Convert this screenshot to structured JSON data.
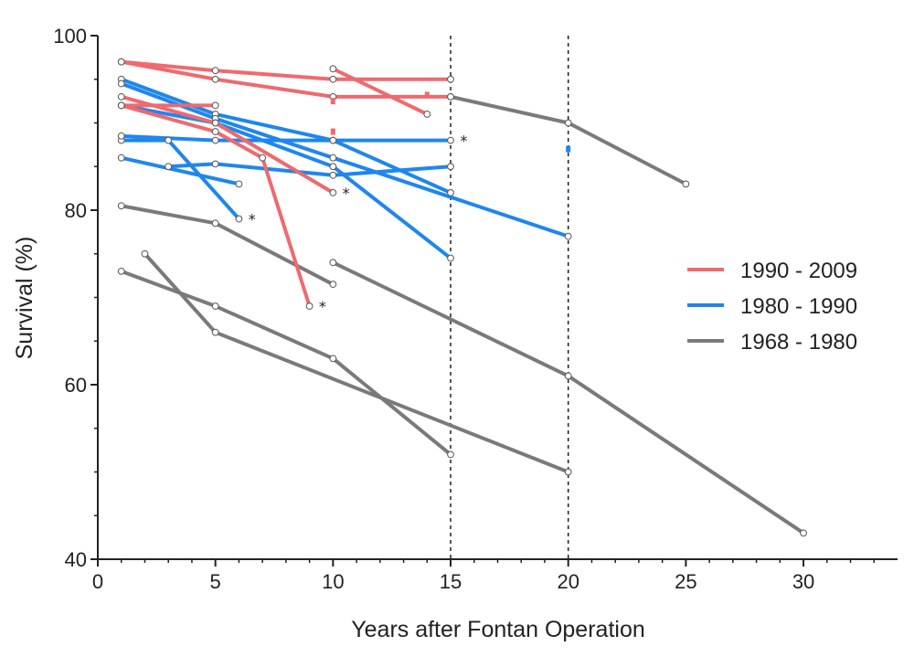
{
  "chart_data": {
    "type": "line",
    "xlabel": "Years after Fontan Operation",
    "ylabel": "Survival (%)",
    "xlim": [
      0,
      34
    ],
    "ylim": [
      40,
      100
    ],
    "xticks": [
      0,
      5,
      10,
      15,
      20,
      25,
      30
    ],
    "yticks": [
      40,
      60,
      80,
      100
    ],
    "grid": false,
    "reference_lines_x": [
      15,
      20
    ],
    "legend_position": "right",
    "colors": {
      "1990 - 2009": "#ee6a6e",
      "1980 - 1990": "#1f86ee",
      "1968 - 1980": "#7a7a7a"
    },
    "legend": [
      {
        "label": "1990 - 2009",
        "color": "#ee6a6e"
      },
      {
        "label": "1980 - 1990",
        "color": "#1f86ee"
      },
      {
        "label": "1968 - 1980",
        "color": "#7a7a7a"
      }
    ],
    "series": [
      {
        "group": "1968 - 1980",
        "points": [
          [
            15,
            93
          ],
          [
            20,
            90
          ],
          [
            25,
            83
          ]
        ]
      },
      {
        "group": "1968 - 1980",
        "points": [
          [
            1,
            80.5
          ],
          [
            5,
            78.5
          ],
          [
            10,
            71.5
          ]
        ]
      },
      {
        "group": "1968 - 1980",
        "points": [
          [
            10,
            74
          ],
          [
            20,
            61
          ],
          [
            30,
            43
          ]
        ]
      },
      {
        "group": "1968 - 1980",
        "points": [
          [
            2,
            75
          ],
          [
            5,
            66
          ],
          [
            20,
            50
          ]
        ]
      },
      {
        "group": "1968 - 1980",
        "points": [
          [
            1,
            73
          ],
          [
            5,
            69
          ],
          [
            10,
            63
          ],
          [
            15,
            52
          ]
        ]
      },
      {
        "group": "1980 - 1990",
        "points": [
          [
            1,
            95
          ],
          [
            5,
            91
          ],
          [
            10,
            88
          ],
          [
            15,
            82
          ]
        ]
      },
      {
        "group": "1980 - 1990",
        "points": [
          [
            1,
            94.5
          ],
          [
            5,
            90.5
          ],
          [
            10,
            86
          ],
          [
            20,
            77
          ]
        ]
      },
      {
        "group": "1980 - 1990",
        "points": [
          [
            1,
            92
          ],
          [
            5,
            90
          ],
          [
            10,
            85
          ],
          [
            15,
            74.5
          ]
        ]
      },
      {
        "group": "1980 - 1990",
        "points": [
          [
            1,
            88
          ],
          [
            3,
            88
          ],
          [
            6,
            79
          ]
        ]
      },
      {
        "group": "1980 - 1990",
        "points": [
          [
            1,
            86
          ],
          [
            6,
            83
          ]
        ]
      },
      {
        "group": "1980 - 1990",
        "points": [
          [
            1,
            88.5
          ],
          [
            5,
            88
          ],
          [
            10,
            88
          ],
          [
            15,
            88
          ]
        ]
      },
      {
        "group": "1980 - 1990",
        "points": [
          [
            3,
            85
          ],
          [
            5,
            85.3
          ],
          [
            10,
            84
          ],
          [
            15,
            85
          ]
        ]
      },
      {
        "group": "1990 - 2009",
        "points": [
          [
            1,
            97
          ],
          [
            5,
            96
          ],
          [
            10,
            95
          ],
          [
            15,
            95
          ]
        ]
      },
      {
        "group": "1990 - 2009",
        "points": [
          [
            1,
            97
          ],
          [
            5,
            95
          ],
          [
            10,
            93
          ],
          [
            15,
            93
          ]
        ]
      },
      {
        "group": "1990 - 2009",
        "points": [
          [
            10,
            96.2
          ],
          [
            14,
            91
          ]
        ]
      },
      {
        "group": "1990 - 2009",
        "points": [
          [
            1,
            93
          ],
          [
            5,
            90
          ],
          [
            10,
            82
          ]
        ]
      },
      {
        "group": "1990 - 2009",
        "points": [
          [
            1,
            92
          ],
          [
            5,
            89
          ],
          [
            7,
            86
          ],
          [
            9,
            69
          ]
        ]
      },
      {
        "group": "1990 - 2009",
        "points": [
          [
            1,
            92
          ],
          [
            5,
            92
          ]
        ]
      }
    ],
    "markers": [
      {
        "x": 10,
        "y": 92.5,
        "group": "1990 - 2009"
      },
      {
        "x": 10,
        "y": 89,
        "group": "1990 - 2009"
      },
      {
        "x": 14,
        "y": 93.2,
        "group": "1990 - 2009"
      },
      {
        "x": 20,
        "y": 87,
        "group": "1980 - 1990"
      }
    ],
    "annotations": [
      {
        "text": "*",
        "x": 15.4,
        "y": 88
      },
      {
        "text": "*",
        "x": 10.4,
        "y": 82
      },
      {
        "text": "*",
        "x": 6.4,
        "y": 79
      },
      {
        "text": "*",
        "x": 9.4,
        "y": 69
      }
    ]
  }
}
